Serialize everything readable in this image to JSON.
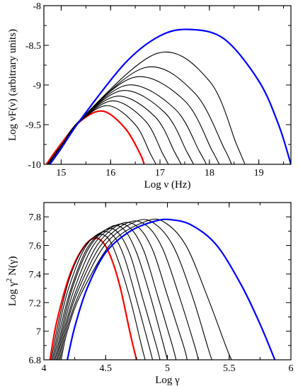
{
  "chart_data": [
    {
      "type": "line",
      "xlabel": "Log  ν  (Hz)",
      "ylabel": "Log νF(ν)  (arbitrary units)",
      "xlim": [
        14.65,
        19.65
      ],
      "ylim": [
        -10,
        -8
      ],
      "xticks": [
        15,
        16,
        17,
        18,
        19
      ],
      "yticks": [
        -10,
        -9.5,
        -9,
        -8.5,
        -8
      ],
      "xtick_labels": [
        "15",
        "16",
        "17",
        "18",
        "19"
      ],
      "ytick_labels": [
        "-10",
        "-9.5",
        "-9",
        "-8.5",
        "-8"
      ],
      "grid": false,
      "colors": {
        "first": "#ff0000",
        "middle": "#000000",
        "last": "#0000ff"
      },
      "series": [
        {
          "color": "#ff0000",
          "x": [
            14.7,
            15.0,
            15.4,
            15.85,
            16.3,
            16.6,
            16.68
          ],
          "y": [
            -10.0,
            -9.74,
            -9.45,
            -9.33,
            -9.55,
            -9.87,
            -10.0
          ]
        },
        {
          "color": "#000000",
          "x": [
            14.72,
            15.0,
            15.4,
            15.95,
            16.5,
            16.8,
            16.92
          ],
          "y": [
            -10.0,
            -9.76,
            -9.45,
            -9.26,
            -9.5,
            -9.86,
            -10.0
          ]
        },
        {
          "color": "#000000",
          "x": [
            14.73,
            15.0,
            15.4,
            16.05,
            16.7,
            17.05,
            17.17
          ],
          "y": [
            -10.0,
            -9.77,
            -9.45,
            -9.2,
            -9.45,
            -9.86,
            -10.0
          ]
        },
        {
          "color": "#000000",
          "x": [
            14.74,
            15.0,
            15.4,
            16.15,
            16.9,
            17.3,
            17.43
          ],
          "y": [
            -10.0,
            -9.77,
            -9.44,
            -9.14,
            -9.4,
            -9.85,
            -10.0
          ]
        },
        {
          "color": "#000000",
          "x": [
            14.74,
            15.0,
            15.4,
            16.25,
            17.1,
            17.55,
            17.68
          ],
          "y": [
            -10.0,
            -9.78,
            -9.44,
            -9.07,
            -9.35,
            -9.85,
            -10.0
          ]
        },
        {
          "color": "#000000",
          "x": [
            14.75,
            15.0,
            15.4,
            16.35,
            17.3,
            17.8,
            17.94
          ],
          "y": [
            -10.0,
            -9.78,
            -9.44,
            -9.0,
            -9.3,
            -9.84,
            -10.0
          ]
        },
        {
          "color": "#000000",
          "x": [
            14.75,
            15.0,
            15.4,
            16.5,
            17.5,
            18.05,
            18.2
          ],
          "y": [
            -10.0,
            -9.78,
            -9.43,
            -8.9,
            -9.2,
            -9.82,
            -10.0
          ]
        },
        {
          "color": "#000000",
          "x": [
            14.76,
            15.0,
            15.4,
            16.7,
            17.7,
            18.3,
            18.45
          ],
          "y": [
            -10.0,
            -9.79,
            -9.43,
            -8.78,
            -9.1,
            -9.8,
            -10.0
          ]
        },
        {
          "color": "#000000",
          "x": [
            14.76,
            15.0,
            15.4,
            16.95,
            18.0,
            18.55,
            18.72
          ],
          "y": [
            -10.0,
            -9.79,
            -9.43,
            -8.6,
            -8.95,
            -9.75,
            -10.0
          ]
        },
        {
          "color": "#0000ff",
          "x": [
            14.77,
            15.0,
            15.4,
            16.3,
            17.0,
            17.6,
            18.3,
            19.0,
            19.4,
            19.65
          ],
          "y": [
            -10.0,
            -9.8,
            -9.43,
            -8.72,
            -8.38,
            -8.3,
            -8.42,
            -8.95,
            -9.5,
            -10.0
          ]
        }
      ]
    },
    {
      "type": "line",
      "xlabel": "Log  γ",
      "ylabel": "Log  γ² N(γ)",
      "ylabel_main": "Log  γ",
      "ylabel_sup": "2",
      "ylabel_tail": " N(γ)",
      "xlim": [
        4,
        6
      ],
      "ylim": [
        6.8,
        7.9
      ],
      "xticks": [
        4,
        4.5,
        5,
        5.5,
        6
      ],
      "yticks": [
        6.8,
        7,
        7.2,
        7.4,
        7.6,
        7.8
      ],
      "xtick_labels": [
        "4",
        "4.5",
        "5",
        "5.5",
        "6"
      ],
      "ytick_labels": [
        "6.8",
        "7",
        "7.2",
        "7.4",
        "7.6",
        "7.8"
      ],
      "grid": false,
      "colors": {
        "first": "#ff0000",
        "middle": "#000000",
        "last": "#0000ff"
      },
      "series": [
        {
          "color": "#ff0000",
          "x": [
            4.05,
            4.1,
            4.2,
            4.3,
            4.4,
            4.48,
            4.55,
            4.62,
            4.7,
            4.75
          ],
          "y": [
            6.8,
            7.05,
            7.37,
            7.56,
            7.65,
            7.62,
            7.5,
            7.3,
            6.98,
            6.8
          ]
        },
        {
          "color": "#000000",
          "x": [
            4.06,
            4.11,
            4.2,
            4.31,
            4.43,
            4.52,
            4.6,
            4.7,
            4.79,
            4.82
          ],
          "y": [
            6.8,
            7.03,
            7.35,
            7.57,
            7.67,
            7.65,
            7.5,
            7.22,
            6.9,
            6.8
          ]
        },
        {
          "color": "#000000",
          "x": [
            4.07,
            4.12,
            4.2,
            4.33,
            4.46,
            4.56,
            4.65,
            4.75,
            4.85,
            4.88
          ],
          "y": [
            6.8,
            7.02,
            7.3,
            7.58,
            7.69,
            7.67,
            7.52,
            7.22,
            6.9,
            6.8
          ]
        },
        {
          "color": "#000000",
          "x": [
            4.08,
            4.13,
            4.22,
            4.35,
            4.5,
            4.6,
            4.7,
            4.8,
            4.91,
            4.94
          ],
          "y": [
            6.8,
            7.01,
            7.3,
            7.58,
            7.71,
            7.69,
            7.53,
            7.23,
            6.9,
            6.8
          ]
        },
        {
          "color": "#000000",
          "x": [
            4.09,
            4.14,
            4.23,
            4.37,
            4.54,
            4.65,
            4.75,
            4.86,
            4.97,
            5.0
          ],
          "y": [
            6.8,
            7.0,
            7.3,
            7.59,
            7.73,
            7.71,
            7.55,
            7.25,
            6.9,
            6.8
          ]
        },
        {
          "color": "#000000",
          "x": [
            4.1,
            4.15,
            4.24,
            4.4,
            4.58,
            4.7,
            4.81,
            4.92,
            5.04,
            5.07
          ],
          "y": [
            6.8,
            7.0,
            7.28,
            7.6,
            7.74,
            7.72,
            7.56,
            7.25,
            6.9,
            6.8
          ]
        },
        {
          "color": "#000000",
          "x": [
            4.11,
            4.16,
            4.26,
            4.43,
            4.62,
            4.76,
            4.88,
            5.0,
            5.13,
            5.16
          ],
          "y": [
            6.8,
            7.0,
            7.28,
            7.6,
            7.75,
            7.73,
            7.57,
            7.25,
            6.9,
            6.8
          ]
        },
        {
          "color": "#000000",
          "x": [
            4.12,
            4.17,
            4.27,
            4.46,
            4.68,
            4.83,
            4.96,
            5.09,
            5.22,
            5.25
          ],
          "y": [
            6.8,
            7.0,
            7.27,
            7.6,
            7.76,
            7.74,
            7.58,
            7.26,
            6.9,
            6.8
          ]
        },
        {
          "color": "#000000",
          "x": [
            4.13,
            4.18,
            4.29,
            4.5,
            4.75,
            4.9,
            5.05,
            5.2,
            5.33,
            5.36
          ],
          "y": [
            6.8,
            7.0,
            7.27,
            7.61,
            7.77,
            7.75,
            7.59,
            7.25,
            6.88,
            6.8
          ]
        },
        {
          "color": "#000000",
          "x": [
            4.14,
            4.19,
            4.3,
            4.55,
            4.83,
            4.98,
            5.15,
            5.32,
            5.48,
            5.52
          ],
          "y": [
            6.8,
            7.0,
            7.26,
            7.62,
            7.77,
            7.76,
            7.6,
            7.25,
            6.88,
            6.8
          ]
        },
        {
          "color": "#0000ff",
          "x": [
            4.19,
            4.25,
            4.35,
            4.5,
            4.7,
            4.9,
            5.03,
            5.2,
            5.4,
            5.6,
            5.75,
            5.87
          ],
          "y": [
            6.8,
            7.03,
            7.3,
            7.55,
            7.7,
            7.77,
            7.78,
            7.74,
            7.6,
            7.32,
            7.05,
            6.8
          ]
        }
      ]
    }
  ]
}
